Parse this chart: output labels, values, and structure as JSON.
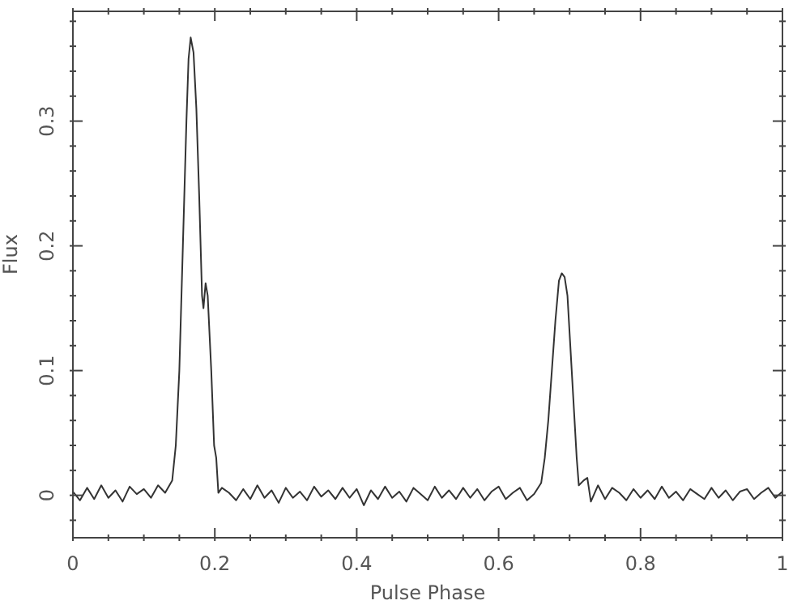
{
  "chart_data": {
    "type": "line",
    "xlabel": "Pulse Phase",
    "ylabel": "Flux",
    "color": "#333333",
    "marker": "none",
    "line_style": "solid",
    "xlim": [
      0,
      1
    ],
    "ylim": [
      -0.034,
      0.388
    ],
    "xticks": [
      {
        "value": 0,
        "label": "0"
      },
      {
        "value": 0.05,
        "label": null
      },
      {
        "value": 0.1,
        "label": null
      },
      {
        "value": 0.15,
        "label": null
      },
      {
        "value": 0.2,
        "label": "0.2"
      },
      {
        "value": 0.25,
        "label": null
      },
      {
        "value": 0.3,
        "label": null
      },
      {
        "value": 0.35,
        "label": null
      },
      {
        "value": 0.4,
        "label": "0.4"
      },
      {
        "value": 0.45,
        "label": null
      },
      {
        "value": 0.5,
        "label": null
      },
      {
        "value": 0.55,
        "label": null
      },
      {
        "value": 0.6,
        "label": "0.6"
      },
      {
        "value": 0.65,
        "label": null
      },
      {
        "value": 0.7,
        "label": null
      },
      {
        "value": 0.75,
        "label": null
      },
      {
        "value": 0.8,
        "label": "0.8"
      },
      {
        "value": 0.85,
        "label": null
      },
      {
        "value": 0.9,
        "label": null
      },
      {
        "value": 0.95,
        "label": null
      },
      {
        "value": 1,
        "label": "1"
      }
    ],
    "yticks": [
      {
        "value": -0.02,
        "label": null
      },
      {
        "value": 0,
        "label": "0"
      },
      {
        "value": 0.02,
        "label": null
      },
      {
        "value": 0.04,
        "label": null
      },
      {
        "value": 0.06,
        "label": null
      },
      {
        "value": 0.08,
        "label": null
      },
      {
        "value": 0.1,
        "label": "0.1"
      },
      {
        "value": 0.12,
        "label": null
      },
      {
        "value": 0.14,
        "label": null
      },
      {
        "value": 0.16,
        "label": null
      },
      {
        "value": 0.18,
        "label": null
      },
      {
        "value": 0.2,
        "label": "0.2"
      },
      {
        "value": 0.22,
        "label": null
      },
      {
        "value": 0.24,
        "label": null
      },
      {
        "value": 0.26,
        "label": null
      },
      {
        "value": 0.28,
        "label": null
      },
      {
        "value": 0.3,
        "label": "0.3"
      },
      {
        "value": 0.32,
        "label": null
      },
      {
        "value": 0.34,
        "label": null
      },
      {
        "value": 0.36,
        "label": null
      },
      {
        "value": 0.38,
        "label": null
      }
    ],
    "x": [
      0,
      0.01,
      0.02,
      0.03,
      0.04,
      0.05,
      0.06,
      0.07,
      0.08,
      0.09,
      0.1,
      0.11,
      0.12,
      0.13,
      0.14,
      0.145,
      0.15,
      0.155,
      0.16,
      0.163,
      0.166,
      0.17,
      0.174,
      0.178,
      0.182,
      0.184,
      0.187,
      0.19,
      0.195,
      0.199,
      0.202,
      0.205,
      0.21,
      0.22,
      0.23,
      0.24,
      0.25,
      0.26,
      0.27,
      0.28,
      0.29,
      0.3,
      0.31,
      0.32,
      0.33,
      0.34,
      0.35,
      0.36,
      0.37,
      0.38,
      0.39,
      0.4,
      0.41,
      0.42,
      0.43,
      0.44,
      0.45,
      0.46,
      0.47,
      0.48,
      0.49,
      0.5,
      0.51,
      0.52,
      0.53,
      0.54,
      0.55,
      0.56,
      0.57,
      0.58,
      0.59,
      0.6,
      0.61,
      0.62,
      0.63,
      0.64,
      0.65,
      0.66,
      0.665,
      0.67,
      0.675,
      0.68,
      0.685,
      0.689,
      0.693,
      0.697,
      0.7,
      0.705,
      0.71,
      0.713,
      0.72,
      0.725,
      0.73,
      0.74,
      0.75,
      0.76,
      0.77,
      0.78,
      0.79,
      0.8,
      0.81,
      0.82,
      0.83,
      0.84,
      0.85,
      0.86,
      0.87,
      0.88,
      0.89,
      0.9,
      0.91,
      0.92,
      0.93,
      0.94,
      0.95,
      0.96,
      0.97,
      0.98,
      0.99,
      1
    ],
    "values": [
      0.003,
      -0.004,
      0.006,
      -0.003,
      0.008,
      -0.002,
      0.004,
      -0.005,
      0.007,
      0.001,
      0.005,
      -0.002,
      0.008,
      0.002,
      0.012,
      0.04,
      0.1,
      0.2,
      0.3,
      0.35,
      0.367,
      0.355,
      0.31,
      0.24,
      0.16,
      0.15,
      0.17,
      0.16,
      0.1,
      0.04,
      0.03,
      0.002,
      0.006,
      0.002,
      -0.004,
      0.005,
      -0.003,
      0.008,
      -0.002,
      0.004,
      -0.006,
      0.006,
      -0.002,
      0.003,
      -0.004,
      0.007,
      -0.001,
      0.004,
      -0.003,
      0.006,
      -0.002,
      0.005,
      -0.008,
      0.004,
      -0.003,
      0.007,
      -0.002,
      0.003,
      -0.005,
      0.006,
      0.001,
      -0.004,
      0.007,
      -0.002,
      0.004,
      -0.003,
      0.006,
      -0.002,
      0.005,
      -0.004,
      0.003,
      0.007,
      -0.003,
      0.002,
      0.006,
      -0.004,
      0.001,
      0.01,
      0.03,
      0.06,
      0.1,
      0.14,
      0.172,
      0.178,
      0.175,
      0.16,
      0.13,
      0.08,
      0.03,
      0.008,
      0.012,
      0.014,
      -0.005,
      0.008,
      -0.003,
      0.006,
      0.002,
      -0.004,
      0.005,
      -0.002,
      0.004,
      -0.003,
      0.007,
      -0.002,
      0.003,
      -0.004,
      0.005,
      0.001,
      -0.003,
      0.006,
      -0.002,
      0.004,
      -0.004,
      0.003,
      0.005,
      -0.003,
      0.002,
      0.006,
      -0.002,
      0.003
    ]
  }
}
